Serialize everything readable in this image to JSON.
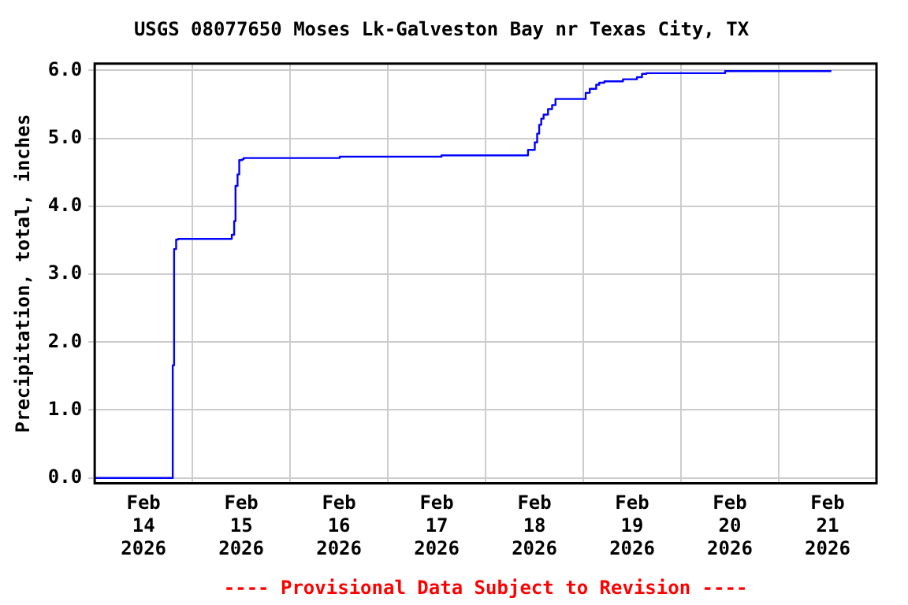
{
  "chart_data": {
    "type": "step",
    "title": "USGS 08077650 Moses Lk-Galveston Bay nr Texas City, TX",
    "ylabel": "Precipitation, total, inches",
    "annotations": [
      "---- Provisional Data Subject to Revision ----"
    ],
    "x": [
      "2026-02-14T00:00",
      "2026-02-14T19:10",
      "2026-02-14T19:30",
      "2026-02-14T20:00",
      "2026-02-14T20:30",
      "2026-02-15T09:40",
      "2026-02-15T10:15",
      "2026-02-15T10:35",
      "2026-02-15T11:05",
      "2026-02-15T11:30",
      "2026-02-15T12:10",
      "2026-02-15T12:35",
      "2026-02-16T12:10",
      "2026-02-17T13:10",
      "2026-02-18T10:25",
      "2026-02-18T12:05",
      "2026-02-18T12:40",
      "2026-02-18T13:10",
      "2026-02-18T13:40",
      "2026-02-18T14:15",
      "2026-02-18T15:20",
      "2026-02-18T16:20",
      "2026-02-18T17:10",
      "2026-02-19T00:35",
      "2026-02-19T01:35",
      "2026-02-19T03:10",
      "2026-02-19T03:55",
      "2026-02-19T05:10",
      "2026-02-19T09:45",
      "2026-02-19T13:10",
      "2026-02-19T14:25",
      "2026-02-19T15:30",
      "2026-02-20T10:50",
      "2026-02-21T12:55"
    ],
    "series": [
      {
        "color": "#0000ff",
        "values": [
          0,
          1.66,
          3.37,
          3.51,
          3.52,
          3.58,
          3.78,
          4.3,
          4.47,
          4.68,
          4.69,
          4.71,
          4.73,
          4.75,
          4.83,
          4.94,
          5.07,
          5.2,
          5.29,
          5.35,
          5.43,
          5.49,
          5.58,
          5.67,
          5.73,
          5.79,
          5.82,
          5.84,
          5.87,
          5.9,
          5.95,
          5.96,
          5.99,
          5.99
        ]
      }
    ],
    "xlim": [
      "2026-02-14T00:00",
      "2026-02-22T00:00"
    ],
    "xticks": [
      {
        "value": "2026-02-14T00:00",
        "label": null
      },
      {
        "value": "2026-02-14T12:00",
        "label": "Feb 14 2026"
      },
      {
        "value": "2026-02-15T00:00",
        "label": null
      },
      {
        "value": "2026-02-15T12:00",
        "label": "Feb 15 2026"
      },
      {
        "value": "2026-02-16T00:00",
        "label": null
      },
      {
        "value": "2026-02-16T12:00",
        "label": "Feb 16 2026"
      },
      {
        "value": "2026-02-17T00:00",
        "label": null
      },
      {
        "value": "2026-02-17T12:00",
        "label": "Feb 17 2026"
      },
      {
        "value": "2026-02-18T00:00",
        "label": null
      },
      {
        "value": "2026-02-18T12:00",
        "label": "Feb 18 2026"
      },
      {
        "value": "2026-02-19T00:00",
        "label": null
      },
      {
        "value": "2026-02-19T12:00",
        "label": "Feb 19 2026"
      },
      {
        "value": "2026-02-20T00:00",
        "label": null
      },
      {
        "value": "2026-02-20T12:00",
        "label": "Feb 20 2026"
      },
      {
        "value": "2026-02-21T00:00",
        "label": null
      },
      {
        "value": "2026-02-21T12:00",
        "label": "Feb 21 2026"
      },
      {
        "value": "2026-02-22T00:00",
        "label": null
      }
    ],
    "ylim": [
      -0.08,
      6.1
    ],
    "yticks": [
      {
        "value": 0,
        "label": "0.0"
      },
      {
        "value": 1,
        "label": "1.0"
      },
      {
        "value": 2,
        "label": "2.0"
      },
      {
        "value": 3,
        "label": "3.0"
      },
      {
        "value": 4,
        "label": "4.0"
      },
      {
        "value": 5,
        "label": "5.0"
      },
      {
        "value": 6,
        "label": "6.0"
      }
    ],
    "grid": true,
    "legend": false,
    "marker": "none",
    "line_style": "solid"
  }
}
